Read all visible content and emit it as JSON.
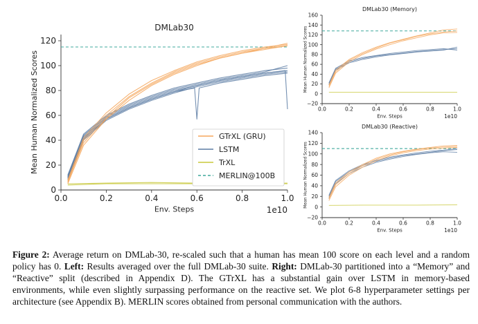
{
  "colors": {
    "gtrxl": "#f5a65b",
    "lstm": "#5a7ba3",
    "trxl": "#c8c83a",
    "merlin": "#3fa89c",
    "axis": "#333333"
  },
  "chart_data": [
    {
      "id": "main",
      "type": "line",
      "title": "DMLab30",
      "xlabel": "Env. Steps",
      "ylabel": "Mean Human Normalized Scores",
      "x_multiplier_label": "1e10",
      "xlim": [
        0,
        1.0
      ],
      "ylim": [
        0,
        125
      ],
      "xticks": [
        "0.0",
        "0.2",
        "0.4",
        "0.6",
        "0.8",
        "1.0"
      ],
      "yticks": [
        "0",
        "20",
        "40",
        "60",
        "80",
        "100",
        "120"
      ],
      "legend_position": "lower-right",
      "legend": [
        "GTrXL (GRU)",
        "LSTM",
        "TrXL",
        "MERLIN@100B"
      ],
      "reference": {
        "name": "MERLIN@100B",
        "y": 115
      },
      "series": [
        {
          "group": "GTrXL (GRU)",
          "x": [
            0.03,
            0.1,
            0.2,
            0.3,
            0.4,
            0.5,
            0.6,
            0.7,
            0.8,
            0.9,
            1.0
          ],
          "y": [
            8,
            42,
            62,
            77,
            88,
            96,
            103,
            108,
            112,
            115,
            117
          ]
        },
        {
          "group": "GTrXL (GRU)",
          "x": [
            0.03,
            0.1,
            0.2,
            0.3,
            0.4,
            0.5,
            0.6,
            0.7,
            0.8,
            0.9,
            1.0
          ],
          "y": [
            6,
            40,
            60,
            75,
            86,
            95,
            102,
            107,
            111,
            114,
            116
          ]
        },
        {
          "group": "GTrXL (GRU)",
          "x": [
            0.03,
            0.1,
            0.2,
            0.3,
            0.4,
            0.5,
            0.6,
            0.7,
            0.8,
            0.9,
            1.0
          ],
          "y": [
            7,
            38,
            58,
            74,
            85,
            94,
            101,
            106,
            110,
            114,
            118
          ]
        },
        {
          "group": "GTrXL (GRU)",
          "x": [
            0.03,
            0.1,
            0.2,
            0.3,
            0.4,
            0.5,
            0.6,
            0.7,
            0.8,
            0.9,
            1.0
          ],
          "y": [
            5,
            36,
            57,
            72,
            84,
            93,
            100,
            106,
            110,
            113,
            116
          ]
        },
        {
          "group": "LSTM",
          "x": [
            0.03,
            0.1,
            0.2,
            0.3,
            0.4,
            0.5,
            0.6,
            0.7,
            0.8,
            0.9,
            1.0
          ],
          "y": [
            12,
            45,
            60,
            69,
            76,
            82,
            86,
            90,
            93,
            96,
            98
          ]
        },
        {
          "group": "LSTM",
          "x": [
            0.03,
            0.1,
            0.2,
            0.3,
            0.4,
            0.5,
            0.6,
            0.7,
            0.8,
            0.9,
            1.0
          ],
          "y": [
            10,
            43,
            58,
            67,
            74,
            80,
            84,
            88,
            91,
            94,
            96
          ]
        },
        {
          "group": "LSTM",
          "x": [
            0.03,
            0.1,
            0.2,
            0.3,
            0.4,
            0.5,
            0.6,
            0.7,
            0.8,
            0.9,
            1.0
          ],
          "y": [
            9,
            40,
            56,
            65,
            72,
            78,
            83,
            87,
            90,
            93,
            95
          ]
        },
        {
          "group": "LSTM",
          "x": [
            0.03,
            0.1,
            0.2,
            0.3,
            0.4,
            0.5,
            0.6,
            0.7,
            0.8,
            0.9,
            1.0
          ],
          "y": [
            11,
            44,
            59,
            68,
            75,
            81,
            85,
            89,
            92,
            95,
            100
          ]
        },
        {
          "group": "LSTM",
          "x": [
            0.03,
            0.1,
            0.2,
            0.3,
            0.4,
            0.5,
            0.59,
            0.6,
            0.61,
            0.7,
            0.8,
            0.9,
            1.0
          ],
          "y": [
            8,
            41,
            57,
            66,
            73,
            79,
            82,
            57,
            82,
            86,
            89,
            92,
            94
          ]
        },
        {
          "group": "LSTM",
          "x": [
            0.03,
            0.1,
            0.2,
            0.3,
            0.4,
            0.5,
            0.6,
            0.7,
            0.8,
            0.9,
            0.99,
            1.0
          ],
          "y": [
            10,
            42,
            57,
            66,
            73,
            79,
            84,
            88,
            91,
            94,
            96,
            65
          ]
        },
        {
          "group": "TrXL",
          "x": [
            0.03,
            0.2,
            0.4,
            0.6,
            0.8,
            1.0
          ],
          "y": [
            4,
            5,
            5,
            5,
            5,
            5
          ]
        },
        {
          "group": "TrXL",
          "x": [
            0.03,
            0.2,
            0.4,
            0.6,
            0.8,
            1.0
          ],
          "y": [
            5,
            5.5,
            6,
            5.5,
            5,
            5.5
          ]
        }
      ]
    },
    {
      "id": "memory",
      "type": "line",
      "title": "DMLab30 (Memory)",
      "xlabel": "Env. Steps",
      "ylabel": "Mean Human Normalized Scores",
      "x_multiplier_label": "1e10",
      "xlim": [
        0,
        1.0
      ],
      "ylim": [
        -20,
        160
      ],
      "xticks": [
        "0.0",
        "0.2",
        "0.4",
        "0.6",
        "0.8",
        "1.0"
      ],
      "yticks": [
        "-20",
        "0",
        "20",
        "40",
        "60",
        "80",
        "100",
        "120",
        "140",
        "160"
      ],
      "reference": {
        "name": "MERLIN@100B",
        "y": 128
      },
      "series": [
        {
          "group": "GTrXL (GRU)",
          "x": [
            0.05,
            0.1,
            0.2,
            0.3,
            0.4,
            0.5,
            0.6,
            0.7,
            0.8,
            0.9,
            1.0
          ],
          "y": [
            15,
            45,
            68,
            82,
            93,
            103,
            110,
            117,
            122,
            126,
            128
          ]
        },
        {
          "group": "GTrXL (GRU)",
          "x": [
            0.05,
            0.1,
            0.2,
            0.3,
            0.4,
            0.5,
            0.6,
            0.7,
            0.8,
            0.9,
            1.0
          ],
          "y": [
            12,
            42,
            65,
            80,
            91,
            100,
            108,
            114,
            120,
            124,
            125
          ]
        },
        {
          "group": "GTrXL (GRU)",
          "x": [
            0.05,
            0.1,
            0.2,
            0.3,
            0.4,
            0.5,
            0.6,
            0.7,
            0.8,
            0.9,
            1.0
          ],
          "y": [
            18,
            48,
            70,
            84,
            95,
            104,
            111,
            118,
            124,
            130,
            132
          ]
        },
        {
          "group": "LSTM",
          "x": [
            0.05,
            0.1,
            0.2,
            0.3,
            0.4,
            0.5,
            0.6,
            0.7,
            0.8,
            0.9,
            1.0
          ],
          "y": [
            20,
            50,
            65,
            72,
            77,
            80,
            83,
            86,
            88,
            90,
            92
          ]
        },
        {
          "group": "LSTM",
          "x": [
            0.05,
            0.1,
            0.2,
            0.3,
            0.4,
            0.5,
            0.6,
            0.7,
            0.8,
            0.9,
            1.0
          ],
          "y": [
            18,
            48,
            63,
            70,
            75,
            79,
            82,
            85,
            87,
            89,
            95
          ]
        },
        {
          "group": "LSTM",
          "x": [
            0.05,
            0.1,
            0.2,
            0.3,
            0.4,
            0.5,
            0.6,
            0.7,
            0.8,
            0.9,
            1.0
          ],
          "y": [
            22,
            52,
            67,
            74,
            78,
            82,
            85,
            88,
            90,
            92,
            89
          ]
        },
        {
          "group": "TrXL",
          "x": [
            0.05,
            0.3,
            0.5,
            0.7,
            1.0
          ],
          "y": [
            3,
            3,
            3,
            3,
            3
          ]
        }
      ]
    },
    {
      "id": "reactive",
      "type": "line",
      "title": "DMLab30 (Reactive)",
      "xlabel": "Env. Steps",
      "ylabel": "Mean Human Normalized Scores",
      "x_multiplier_label": "1e10",
      "xlim": [
        0,
        1.0
      ],
      "ylim": [
        -20,
        140
      ],
      "xticks": [
        "0.0",
        "0.2",
        "0.4",
        "0.6",
        "0.8",
        "1.0"
      ],
      "yticks": [
        "-20",
        "0",
        "20",
        "40",
        "60",
        "80",
        "100",
        "120",
        "140"
      ],
      "reference": {
        "name": "MERLIN@100B",
        "y": 110
      },
      "series": [
        {
          "group": "GTrXL (GRU)",
          "x": [
            0.05,
            0.1,
            0.2,
            0.3,
            0.4,
            0.5,
            0.6,
            0.7,
            0.8,
            0.9,
            1.0
          ],
          "y": [
            15,
            42,
            63,
            78,
            90,
            98,
            104,
            108,
            111,
            113,
            114
          ]
        },
        {
          "group": "GTrXL (GRU)",
          "x": [
            0.05,
            0.1,
            0.2,
            0.3,
            0.4,
            0.5,
            0.6,
            0.7,
            0.8,
            0.9,
            1.0
          ],
          "y": [
            12,
            38,
            60,
            75,
            87,
            96,
            102,
            106,
            109,
            111,
            112
          ]
        },
        {
          "group": "GTrXL (GRU)",
          "x": [
            0.05,
            0.1,
            0.2,
            0.3,
            0.4,
            0.5,
            0.6,
            0.7,
            0.8,
            0.9,
            1.0
          ],
          "y": [
            18,
            45,
            66,
            80,
            92,
            100,
            105,
            109,
            112,
            115,
            116
          ]
        },
        {
          "group": "LSTM",
          "x": [
            0.05,
            0.1,
            0.2,
            0.3,
            0.4,
            0.5,
            0.6,
            0.7,
            0.8,
            0.9,
            1.0
          ],
          "y": [
            20,
            48,
            66,
            78,
            86,
            92,
            97,
            100,
            103,
            106,
            108
          ]
        },
        {
          "group": "LSTM",
          "x": [
            0.05,
            0.1,
            0.2,
            0.3,
            0.4,
            0.5,
            0.6,
            0.7,
            0.8,
            0.9,
            1.0
          ],
          "y": [
            16,
            44,
            63,
            75,
            84,
            90,
            95,
            99,
            102,
            104,
            103
          ]
        },
        {
          "group": "LSTM",
          "x": [
            0.05,
            0.1,
            0.2,
            0.3,
            0.4,
            0.5,
            0.6,
            0.7,
            0.8,
            0.9,
            1.0
          ],
          "y": [
            22,
            50,
            68,
            80,
            88,
            94,
            98,
            102,
            105,
            107,
            110
          ]
        },
        {
          "group": "TrXL",
          "x": [
            0.05,
            0.3,
            0.5,
            0.7,
            1.0
          ],
          "y": [
            3,
            3.5,
            3.5,
            3.5,
            4
          ]
        }
      ]
    }
  ],
  "caption": {
    "figure_label": "Figure 2:",
    "text_1": " Average return on DMLab-30, re-scaled such that a human has mean 100 score on each level and a random policy has 0. ",
    "left_label": "Left:",
    "text_2": " Results averaged over the full DMLab-30 suite. ",
    "right_label": "Right:",
    "text_3": " DMLab-30 partitioned into a “Memory” and “Reactive” split (described in Appendix D). The GTrXL has a substantial gain over LSTM in memory-based environments, while even slightly surpassing performance on the reactive set. We plot 6-8 hyperparameter settings per architecture (see Appendix B). MERLIN scores obtained from personal communication with the authors."
  }
}
